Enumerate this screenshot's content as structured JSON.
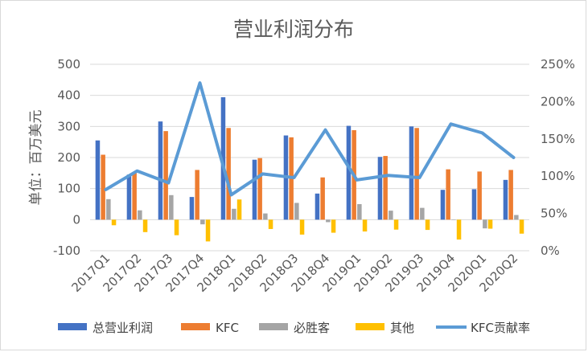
{
  "chart_data": {
    "type": "bar",
    "title": "营业利润分布",
    "ylabel": "单位：百万美元",
    "categories": [
      "2017Q1",
      "2017Q2",
      "2017Q3",
      "2017Q4",
      "2018Q1",
      "2018Q2",
      "2018Q3",
      "2018Q4",
      "2019Q1",
      "2019Q2",
      "2019Q3",
      "2019Q4",
      "2020Q1",
      "2020Q2"
    ],
    "ylim": [
      -100,
      500
    ],
    "yticks": [
      "-100",
      "0",
      "100",
      "200",
      "300",
      "400",
      "500"
    ],
    "y2lim": [
      0,
      2.5
    ],
    "y2ticks": [
      "0%",
      "50%",
      "100%",
      "150%",
      "200%",
      "250%"
    ],
    "series": [
      {
        "name": "总营业利润",
        "kind": "bar",
        "color": "#4472C4",
        "values": [
          255,
          145,
          316,
          73,
          394,
          193,
          271,
          84,
          302,
          202,
          300,
          96,
          98,
          128
        ]
      },
      {
        "name": "KFC",
        "kind": "bar",
        "color": "#ED7D31",
        "values": [
          209,
          150,
          285,
          160,
          295,
          198,
          265,
          136,
          288,
          205,
          295,
          162,
          155,
          160
        ]
      },
      {
        "name": "必胜客",
        "kind": "bar",
        "color": "#A5A5A5",
        "values": [
          66,
          30,
          79,
          -15,
          35,
          20,
          54,
          -8,
          50,
          29,
          38,
          0,
          -28,
          15
        ]
      },
      {
        "name": "其他",
        "kind": "bar",
        "color": "#FFC000",
        "values": [
          -18,
          -40,
          -50,
          -70,
          65,
          -30,
          -48,
          -42,
          -38,
          -32,
          -33,
          -64,
          -29,
          -45
        ]
      },
      {
        "name": "KFC贡献率",
        "kind": "line",
        "axis": "right",
        "color": "#5B9BD5",
        "values": [
          0.82,
          1.07,
          0.91,
          2.25,
          0.75,
          1.03,
          0.98,
          1.62,
          0.95,
          1.01,
          0.98,
          1.7,
          1.58,
          1.25
        ]
      }
    ],
    "grid": true,
    "legend_position": "bottom"
  }
}
